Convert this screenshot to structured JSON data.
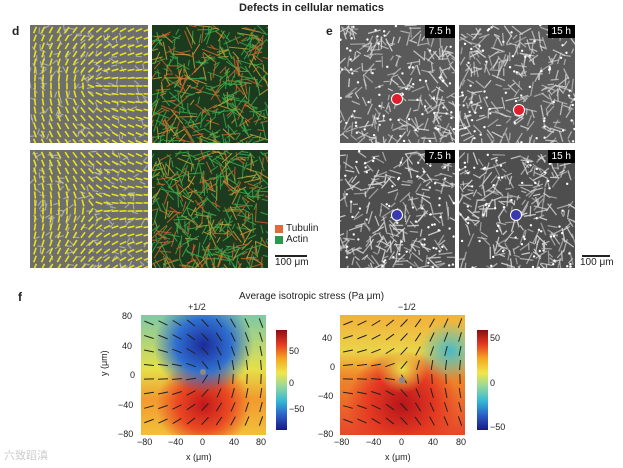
{
  "title": "Defects in cellular nematics",
  "panels": {
    "d": {
      "label": "d",
      "legend": [
        {
          "name": "Tubulin",
          "color": "#e06a3a"
        },
        {
          "name": "Actin",
          "color": "#2a9a4a"
        }
      ],
      "scale_bar": "100 μm"
    },
    "e": {
      "label": "e",
      "time_tags": [
        "7.5 h",
        "15 h",
        "7.5 h",
        "15 h"
      ],
      "scale_bar": "100 μm"
    },
    "f": {
      "label": "f",
      "title": "Average isotropic stress (Pa μm)",
      "maps": [
        {
          "defect_label": "+1/2",
          "cbar_ticks": [
            "50",
            "0",
            "−50"
          ]
        },
        {
          "defect_label": "−1/2",
          "cbar_ticks": [
            "50",
            "0",
            "−50"
          ]
        }
      ],
      "x_ticks": [
        "−80",
        "−40",
        "0",
        "40",
        "80"
      ],
      "y_ticks": [
        "80",
        "40",
        "0",
        "−40",
        "−80"
      ],
      "xlabel": "x (μm)",
      "ylabel": "y (μm)"
    }
  },
  "watermark": "六致蹈滇"
}
